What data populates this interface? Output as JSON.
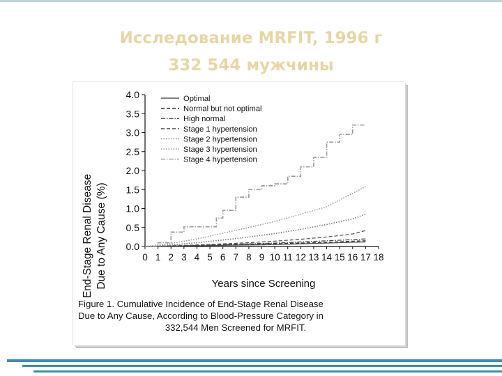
{
  "slide": {
    "title_line1": "Исследование MRFIT, 1996 г",
    "title_line2": "332 544 мужчины",
    "colors": {
      "title": "#e6d6a6",
      "accent_bars": "#3a8fad"
    }
  },
  "caption": {
    "line1": "Figure 1. Cumulative Incidence of End-Stage Renal Disease",
    "line2": "Due to Any Cause, According to Blood-Pressure Category in",
    "line3": "332,544 Men Screened for MRFIT."
  },
  "chart_data": {
    "type": "line",
    "title": "",
    "xlabel": "Years since Screening",
    "ylabel_line1": "End-Stage Renal Disease",
    "ylabel_line2": "Due to Any Cause (%)",
    "xlim": [
      0,
      18
    ],
    "ylim": [
      0,
      4.0
    ],
    "x_ticks": [
      "0",
      "1",
      "2",
      "3",
      "4",
      "5",
      "6",
      "7",
      "8",
      "9",
      "10",
      "11",
      "12",
      "13",
      "14",
      "15",
      "16",
      "17",
      "18"
    ],
    "y_ticks": [
      "0.0",
      "0.5",
      "1.0",
      "1.5",
      "2.0",
      "2.5",
      "3.0",
      "3.5",
      "4.0"
    ],
    "legend_position": "top-left",
    "grid": false,
    "series": [
      {
        "name": "Optimal",
        "style": "solid",
        "color": "#555555",
        "x": [
          0,
          2,
          4,
          6,
          8,
          10,
          12,
          14,
          16,
          17
        ],
        "y": [
          0,
          0.01,
          0.02,
          0.03,
          0.04,
          0.05,
          0.07,
          0.09,
          0.11,
          0.12
        ]
      },
      {
        "name": "Normal but not optimal",
        "style": "dash",
        "color": "#333333",
        "x": [
          0,
          2,
          4,
          6,
          8,
          10,
          12,
          14,
          16,
          17
        ],
        "y": [
          0,
          0.01,
          0.02,
          0.04,
          0.06,
          0.07,
          0.09,
          0.11,
          0.14,
          0.15
        ]
      },
      {
        "name": "High normal",
        "style": "dashdot",
        "color": "#444444",
        "x": [
          0,
          2,
          4,
          6,
          8,
          10,
          12,
          14,
          16,
          17
        ],
        "y": [
          0,
          0.01,
          0.03,
          0.05,
          0.07,
          0.09,
          0.12,
          0.15,
          0.18,
          0.2
        ]
      },
      {
        "name": "Stage 1 hypertension",
        "style": "dash",
        "color": "#555555",
        "x": [
          0,
          2,
          4,
          6,
          8,
          10,
          12,
          14,
          16,
          17
        ],
        "y": [
          0,
          0.02,
          0.04,
          0.07,
          0.1,
          0.14,
          0.19,
          0.25,
          0.33,
          0.42
        ]
      },
      {
        "name": "Stage 2 hypertension",
        "style": "dot",
        "color": "#777777",
        "x": [
          0,
          2,
          4,
          6,
          8,
          10,
          12,
          14,
          16,
          17
        ],
        "y": [
          0,
          0.04,
          0.1,
          0.17,
          0.25,
          0.34,
          0.45,
          0.58,
          0.73,
          0.85
        ]
      },
      {
        "name": "Stage 3 hypertension",
        "style": "dot",
        "color": "#999999",
        "x": [
          0,
          2,
          4,
          6,
          8,
          10,
          12,
          14,
          16,
          17
        ],
        "y": [
          0,
          0.08,
          0.2,
          0.35,
          0.5,
          0.66,
          0.85,
          1.05,
          1.4,
          1.58
        ]
      },
      {
        "name": "Stage 4 hypertension",
        "style": "dashdot",
        "color": "#999999",
        "step": true,
        "x": [
          0,
          1,
          2,
          3,
          5,
          5.5,
          6,
          7,
          8,
          9,
          10,
          11,
          12,
          13,
          14,
          15,
          16,
          17
        ],
        "y": [
          0,
          0.1,
          0.38,
          0.52,
          0.52,
          0.75,
          0.95,
          1.3,
          1.5,
          1.6,
          1.65,
          1.85,
          2.1,
          2.35,
          2.75,
          2.95,
          3.2,
          3.2
        ]
      }
    ]
  }
}
